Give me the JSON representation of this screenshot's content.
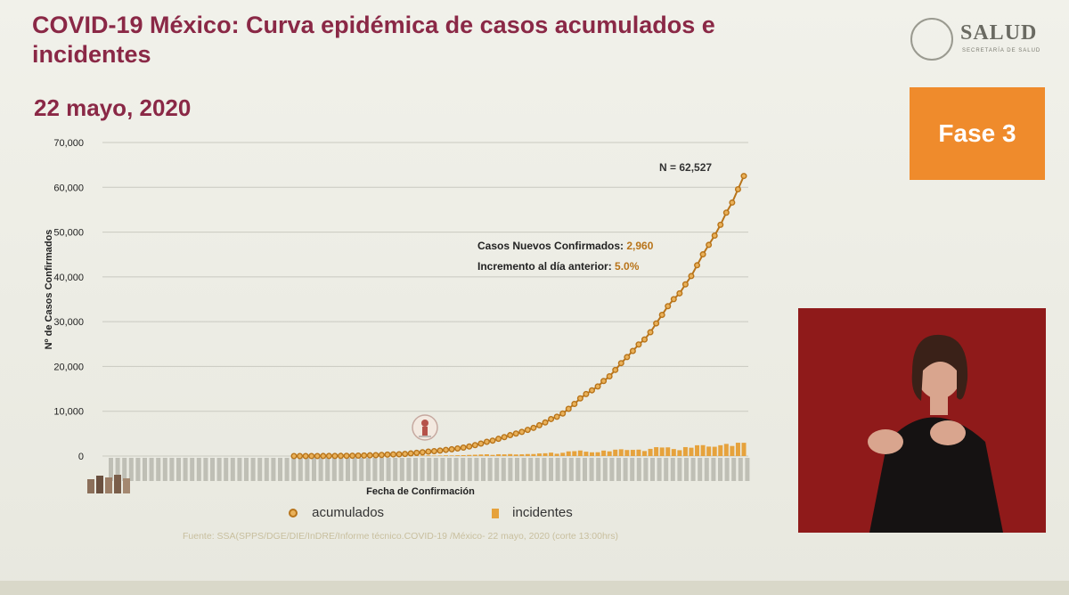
{
  "slide": {
    "title": "COVID-19 México: Curva epidémica de casos acumulados e incidentes",
    "date": "22 mayo, 2020",
    "logo_text": "SALUD",
    "logo_sub": "SECRETARÍA DE SALUD",
    "phase_label": "Fase 3",
    "source": "Fuente: SSA(SPPS/DGE/DIE/InDRE/Informe técnico.COVID-19 /México- 22 mayo, 2020 (corte 13:00hrs)",
    "colors": {
      "title": "#8a2846",
      "phase_bg": "#ef8b2c",
      "line": "#b8741a",
      "marker_fill": "#e9b15a",
      "bars": "#e6a23c",
      "video_bg": "#8f1a1a"
    }
  },
  "chart_data": {
    "type": "line",
    "xlabel": "Fecha de Confirmación",
    "ylabel": "Nº de Casos Confirmados",
    "ylim": [
      0,
      70000
    ],
    "yticks": [
      "0",
      "10,000",
      "20,000",
      "30,000",
      "40,000",
      "50,000",
      "60,000",
      "70,000"
    ],
    "ytick_values": [
      0,
      10000,
      20000,
      30000,
      40000,
      50000,
      60000,
      70000
    ],
    "grid": true,
    "legend_position": "bottom",
    "annotations": {
      "total": "N = 62,527",
      "new_label": "Casos Nuevos Confirmados: ",
      "new_value": "2,960",
      "incr_label": "Incremento al día anterior: ",
      "incr_value": "5.0%"
    },
    "series": [
      {
        "name": "acumulados",
        "values": [
          5,
          6,
          7,
          8,
          12,
          15,
          20,
          26,
          41,
          53,
          82,
          93,
          118,
          164,
          203,
          251,
          316,
          367,
          405,
          475,
          585,
          717,
          848,
          993,
          1094,
          1215,
          1378,
          1510,
          1688,
          1890,
          2143,
          2439,
          2785,
          3181,
          3441,
          3844,
          4219,
          4661,
          5014,
          5399,
          5847,
          6297,
          6875,
          7497,
          8261,
          8772,
          9501,
          10544,
          11633,
          12872,
          13842,
          14677,
          15529,
          16752,
          17799,
          19224,
          20739,
          22088,
          23471,
          24905,
          26025,
          27634,
          29616,
          31522,
          33460,
          35022,
          36327,
          38324,
          40186,
          42595,
          45032,
          47144,
          49219,
          51633,
          54346,
          56594,
          59567,
          62527
        ]
      },
      {
        "name": "incidentes",
        "values": [
          1,
          1,
          1,
          1,
          4,
          3,
          5,
          6,
          15,
          12,
          29,
          11,
          25,
          46,
          39,
          48,
          65,
          51,
          38,
          70,
          110,
          132,
          131,
          145,
          101,
          121,
          163,
          132,
          178,
          202,
          253,
          296,
          346,
          396,
          260,
          403,
          375,
          442,
          353,
          385,
          448,
          450,
          578,
          622,
          764,
          511,
          729,
          1043,
          1089,
          1239,
          970,
          835,
          852,
          1223,
          1047,
          1425,
          1515,
          1349,
          1383,
          1434,
          1120,
          1609,
          1982,
          1906,
          1938,
          1562,
          1305,
          1997,
          1862,
          2409,
          2437,
          2112,
          2075,
          2414,
          2713,
          2248,
          2973,
          2960
        ]
      }
    ]
  }
}
